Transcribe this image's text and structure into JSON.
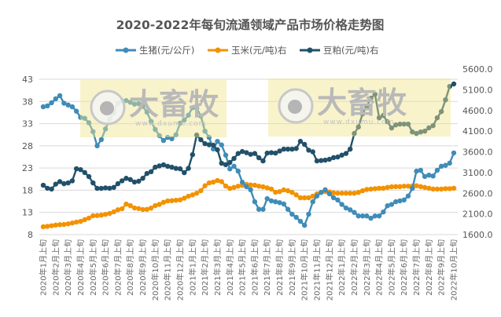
{
  "chart_data": {
    "type": "line",
    "title": "2020-2022年每旬流通领域产品市场价格走势图",
    "legend_position": "top",
    "grid": true,
    "y_left": {
      "min": 8,
      "max": 43,
      "ticks": [
        "8",
        "13",
        "18",
        "23",
        "28",
        "33",
        "38",
        "43"
      ]
    },
    "y_right": {
      "min": 1600,
      "max": 5600,
      "ticks": [
        "1600.0",
        "2100.0",
        "2600.0",
        "3100.0",
        "3600.0",
        "4100.0",
        "4600.0",
        "5100.0",
        "5600.0"
      ]
    },
    "x_tick_labels": [
      "2020年1月上旬",
      "2020年2月上旬",
      "2020年3月上旬",
      "2020年4月上旬",
      "2020年5月上旬",
      "2020年6月上旬",
      "2020年7月上旬",
      "2020年8月上旬",
      "2020年9月上旬",
      "2020年10月上旬",
      "2020年11月上旬",
      "2020年12月上旬",
      "2021年1月上旬",
      "2021年2月上旬",
      "2021年3月上旬",
      "2021年4月上旬",
      "2021年5月上旬",
      "2021年6月上旬",
      "2021年7月上旬",
      "2021年8月上旬",
      "2021年9月上旬",
      "2021年10月上旬",
      "2021年11月上旬",
      "2021年12月上旬",
      "2022年1月上旬",
      "2022年2月上旬",
      "2022年3月上旬",
      "2022年4月上旬",
      "2022年5月上旬",
      "2022年6月上旬",
      "2022年7月上旬",
      "2022年8月上旬",
      "2022年9月上旬",
      "2022年10月上旬"
    ],
    "series": [
      {
        "name": "生猪(元/公斤)",
        "axis": "left",
        "color": "#3f8cb8",
        "values": [
          36.8,
          37,
          37.7,
          38.6,
          39.3,
          37.6,
          37.2,
          36.8,
          35.8,
          34.4,
          34.2,
          33.2,
          31.2,
          28,
          29.4,
          31.8,
          34,
          35.5,
          37.6,
          38.1,
          38.2,
          37.8,
          37.4,
          37.5,
          36.9,
          35.6,
          33.5,
          31.7,
          30.3,
          29.2,
          29.9,
          29.6,
          30.5,
          33.1,
          33.8,
          34.9,
          36.6,
          36.5,
          34.7,
          31.3,
          29.9,
          27.3,
          29,
          28.2,
          25.9,
          22.8,
          23.4,
          22.3,
          19.8,
          18.8,
          18.1,
          15.4,
          13.7,
          13.7,
          16.1,
          15.6,
          15.4,
          15.2,
          14.9,
          13.7,
          12.6,
          11.9,
          11,
          10.1,
          12.6,
          15.4,
          16.7,
          17.5,
          18.1,
          17.2,
          16.3,
          15.8,
          14.8,
          14,
          13.6,
          13,
          12.2,
          12.2,
          12.2,
          11.7,
          12.2,
          12.2,
          13.1,
          14.5,
          14.8,
          15.4,
          15.6,
          15.8,
          16.7,
          18.4,
          22.3,
          22.5,
          21.1,
          21.4,
          21.2,
          22.5,
          23.4,
          23.6,
          24.1,
          26.4
        ]
      },
      {
        "name": "玉米(元/吨)右",
        "axis": "right",
        "color": "#f39200",
        "values": [
          1790,
          1800,
          1815,
          1830,
          1840,
          1846,
          1860,
          1880,
          1903,
          1920,
          1960,
          2000,
          2055,
          2060,
          2070,
          2090,
          2111,
          2150,
          2200,
          2225,
          2339,
          2300,
          2244,
          2230,
          2206,
          2210,
          2240,
          2300,
          2330,
          2380,
          2414,
          2420,
          2430,
          2440,
          2480,
          2528,
          2560,
          2600,
          2661,
          2780,
          2850,
          2869,
          2907,
          2880,
          2774,
          2717,
          2740,
          2770,
          2790,
          2812,
          2800,
          2793,
          2770,
          2755,
          2730,
          2700,
          2623,
          2640,
          2680,
          2660,
          2620,
          2560,
          2490,
          2490,
          2490,
          2530,
          2585,
          2620,
          2640,
          2630,
          2610,
          2600,
          2600,
          2600,
          2600,
          2600,
          2620,
          2660,
          2690,
          2700,
          2710,
          2720,
          2720,
          2740,
          2755,
          2760,
          2760,
          2770,
          2770,
          2775,
          2780,
          2760,
          2740,
          2720,
          2700,
          2700,
          2700,
          2710,
          2710,
          2720
        ]
      },
      {
        "name": "豆粕(元/吨)右",
        "axis": "right",
        "color": "#22506a",
        "values": [
          2793,
          2720,
          2700,
          2820,
          2880,
          2830,
          2850,
          2900,
          3191,
          3170,
          3100,
          3002,
          2850,
          2717,
          2717,
          2730,
          2720,
          2740,
          2830,
          2900,
          2960,
          2930,
          2870,
          2890,
          2960,
          3077,
          3120,
          3229,
          3260,
          3286,
          3250,
          3229,
          3200,
          3190,
          3096,
          3200,
          3532,
          4005,
          3892,
          3797,
          3770,
          3760,
          3650,
          3324,
          3290,
          3343,
          3440,
          3560,
          3608,
          3580,
          3540,
          3560,
          3456,
          3380,
          3570,
          3580,
          3570,
          3620,
          3665,
          3665,
          3665,
          3680,
          3854,
          3780,
          3640,
          3600,
          3380,
          3390,
          3400,
          3420,
          3460,
          3475,
          3520,
          3560,
          3665,
          4043,
          4200,
          4517,
          4700,
          4896,
          4990,
          4422,
          4479,
          4327,
          4176,
          4250,
          4270,
          4270,
          4270,
          4081,
          4043,
          4080,
          4100,
          4180,
          4232,
          4422,
          4573,
          4857,
          5180,
          5240
        ]
      }
    ]
  },
  "watermark": {
    "text": "大畜牧",
    "url": "www.dxumu.com"
  }
}
